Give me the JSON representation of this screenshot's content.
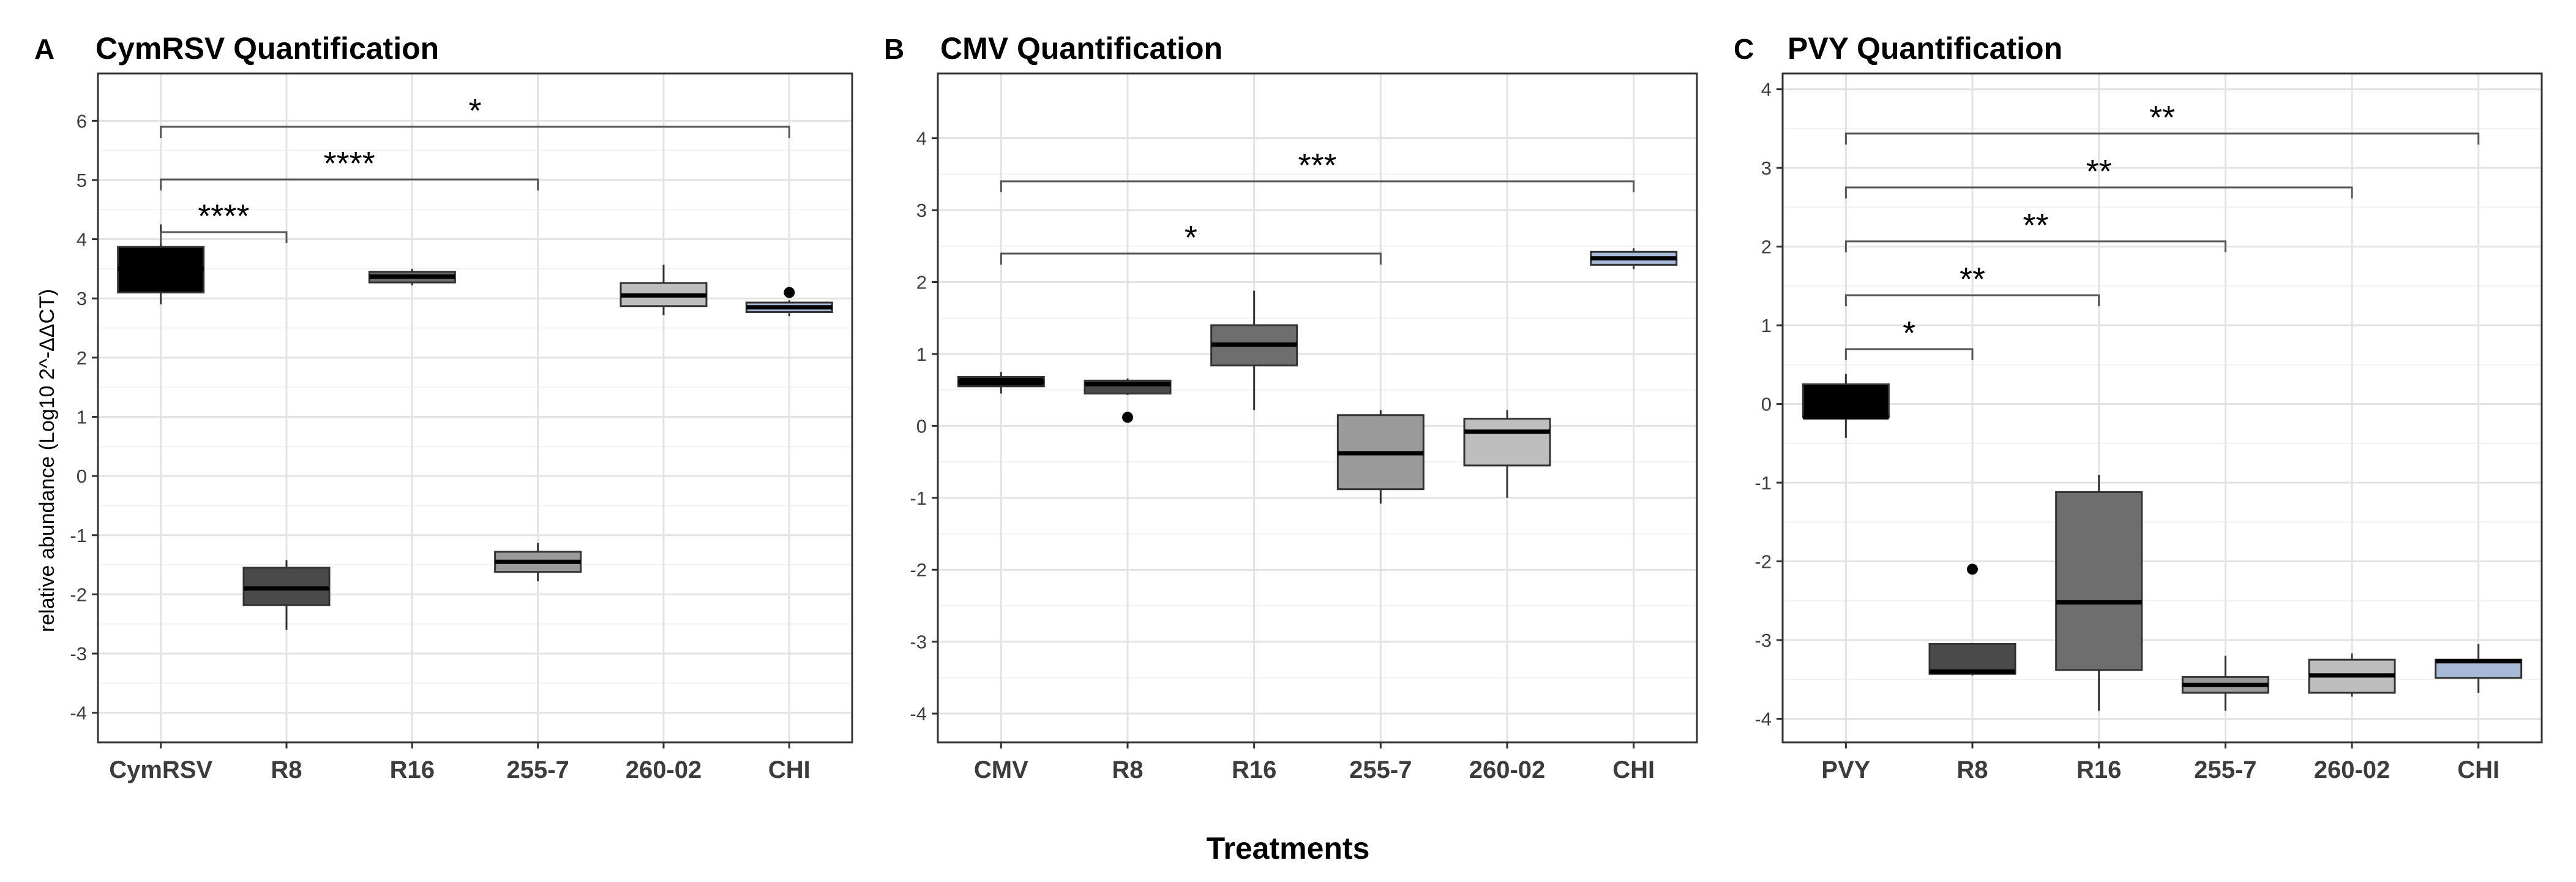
{
  "figure": {
    "x_axis_label": "Treatments",
    "y_axis_label": "relative abundance (Log10 2^-ΔΔCT)"
  },
  "chart_data": [
    {
      "type": "box",
      "panel": "A",
      "title": "CymRSV Quantification",
      "categories": [
        "CymRSV",
        "R8",
        "R16",
        "255-7",
        "260-02",
        "CHI"
      ],
      "ylim": [
        -4.5,
        6.8
      ],
      "yticks": [
        6,
        5,
        4,
        3,
        2,
        1,
        0,
        -1,
        -2,
        -3,
        -4
      ],
      "grid": true,
      "boxes": [
        {
          "category": "CymRSV",
          "min": 2.9,
          "q1": 3.1,
          "median": 3.5,
          "q3": 3.87,
          "max": 4.25,
          "fill": "#000000",
          "median_color": "#000000",
          "outliers": []
        },
        {
          "category": "R8",
          "min": -2.6,
          "q1": -2.18,
          "median": -1.9,
          "q3": -1.55,
          "max": -1.42,
          "fill": "#4a4a4a",
          "median_color": "#000000",
          "outliers": []
        },
        {
          "category": "R16",
          "min": 3.22,
          "q1": 3.27,
          "median": 3.37,
          "q3": 3.45,
          "max": 3.5,
          "fill": "#6e6e6e",
          "median_color": "#000000",
          "outliers": []
        },
        {
          "category": "255-7",
          "min": -1.78,
          "q1": -1.62,
          "median": -1.45,
          "q3": -1.28,
          "max": -1.13,
          "fill": "#9a9a9a",
          "median_color": "#000000",
          "outliers": []
        },
        {
          "category": "260-02",
          "min": 2.72,
          "q1": 2.87,
          "median": 3.05,
          "q3": 3.26,
          "max": 3.57,
          "fill": "#bebebe",
          "median_color": "#000000",
          "outliers": []
        },
        {
          "category": "CHI",
          "min": 2.7,
          "q1": 2.77,
          "median": 2.85,
          "q3": 2.93,
          "max": 2.97,
          "fill": "#a6b9d6",
          "median_color": "#000000",
          "outliers": [
            3.1
          ]
        }
      ],
      "significance": [
        {
          "from": "CymRSV",
          "to": "R8",
          "label": "****"
        },
        {
          "from": "CymRSV",
          "to": "255-7",
          "label": "****"
        },
        {
          "from": "CymRSV",
          "to": "CHI",
          "label": "*"
        }
      ]
    },
    {
      "type": "box",
      "panel": "B",
      "title": "CMV Quantification",
      "categories": [
        "CMV",
        "R8",
        "R16",
        "255-7",
        "260-02",
        "CHI"
      ],
      "ylim": [
        -4.4,
        4.9
      ],
      "yticks": [
        4,
        3,
        2,
        1,
        0,
        -1,
        -2,
        -3,
        -4
      ],
      "grid": true,
      "boxes": [
        {
          "category": "CMV",
          "min": 0.45,
          "q1": 0.55,
          "median": 0.61,
          "q3": 0.68,
          "max": 0.75,
          "fill": "#000000",
          "median_color": "#000000",
          "outliers": []
        },
        {
          "category": "R8",
          "min": 0.43,
          "q1": 0.45,
          "median": 0.58,
          "q3": 0.63,
          "max": 0.66,
          "fill": "#4a4a4a",
          "median_color": "#000000",
          "outliers": [
            0.12
          ]
        },
        {
          "category": "R16",
          "min": 0.22,
          "q1": 0.84,
          "median": 1.13,
          "q3": 1.4,
          "max": 1.88,
          "fill": "#6e6e6e",
          "median_color": "#000000",
          "outliers": []
        },
        {
          "category": "255-7",
          "min": -1.08,
          "q1": -0.88,
          "median": -0.38,
          "q3": 0.15,
          "max": 0.22,
          "fill": "#9a9a9a",
          "median_color": "#000000",
          "outliers": []
        },
        {
          "category": "260-02",
          "min": -1.0,
          "q1": -0.55,
          "median": -0.08,
          "q3": 0.1,
          "max": 0.22,
          "fill": "#bebebe",
          "median_color": "#000000",
          "outliers": []
        },
        {
          "category": "CHI",
          "min": 2.18,
          "q1": 2.24,
          "median": 2.33,
          "q3": 2.42,
          "max": 2.47,
          "fill": "#a6b9d6",
          "median_color": "#000000",
          "outliers": []
        }
      ],
      "significance": [
        {
          "from": "CMV",
          "to": "255-7",
          "label": "*"
        },
        {
          "from": "CMV",
          "to": "CHI",
          "label": "***"
        }
      ]
    },
    {
      "type": "box",
      "panel": "C",
      "title": "PVY Quantification",
      "categories": [
        "PVY",
        "R8",
        "R16",
        "255-7",
        "260-02",
        "CHI"
      ],
      "ylim": [
        -4.3,
        4.2
      ],
      "yticks": [
        4,
        3,
        2,
        1,
        0,
        -1,
        -2,
        -3,
        -4
      ],
      "grid": true,
      "boxes": [
        {
          "category": "PVY",
          "min": -0.43,
          "q1": -0.17,
          "median": -0.17,
          "q3": 0.25,
          "max": 0.38,
          "fill": "#000000",
          "median_color": "#000000",
          "outliers": []
        },
        {
          "category": "R8",
          "min": -3.45,
          "q1": -3.43,
          "median": -3.4,
          "q3": -3.05,
          "max": -3.05,
          "fill": "#4a4a4a",
          "median_color": "#000000",
          "outliers": [
            -2.1
          ]
        },
        {
          "category": "R16",
          "min": -3.9,
          "q1": -3.38,
          "median": -2.52,
          "q3": -1.12,
          "max": -0.9,
          "fill": "#6e6e6e",
          "median_color": "#000000",
          "outliers": []
        },
        {
          "category": "255-7",
          "min": -3.9,
          "q1": -3.67,
          "median": -3.57,
          "q3": -3.47,
          "max": -3.2,
          "fill": "#9a9a9a",
          "median_color": "#000000",
          "outliers": []
        },
        {
          "category": "260-02",
          "min": -3.72,
          "q1": -3.67,
          "median": -3.45,
          "q3": -3.25,
          "max": -3.17,
          "fill": "#bebebe",
          "median_color": "#000000",
          "outliers": []
        },
        {
          "category": "CHI",
          "min": -3.67,
          "q1": -3.48,
          "median": -3.27,
          "q3": -3.25,
          "max": -3.05,
          "fill": "#a6b9d6",
          "median_color": "#000000",
          "outliers": []
        }
      ],
      "significance": [
        {
          "from": "PVY",
          "to": "R8",
          "label": "*"
        },
        {
          "from": "PVY",
          "to": "R16",
          "label": "**"
        },
        {
          "from": "PVY",
          "to": "255-7",
          "label": "**"
        },
        {
          "from": "PVY",
          "to": "260-02",
          "label": "**"
        },
        {
          "from": "PVY",
          "to": "CHI",
          "label": "**"
        }
      ]
    }
  ]
}
